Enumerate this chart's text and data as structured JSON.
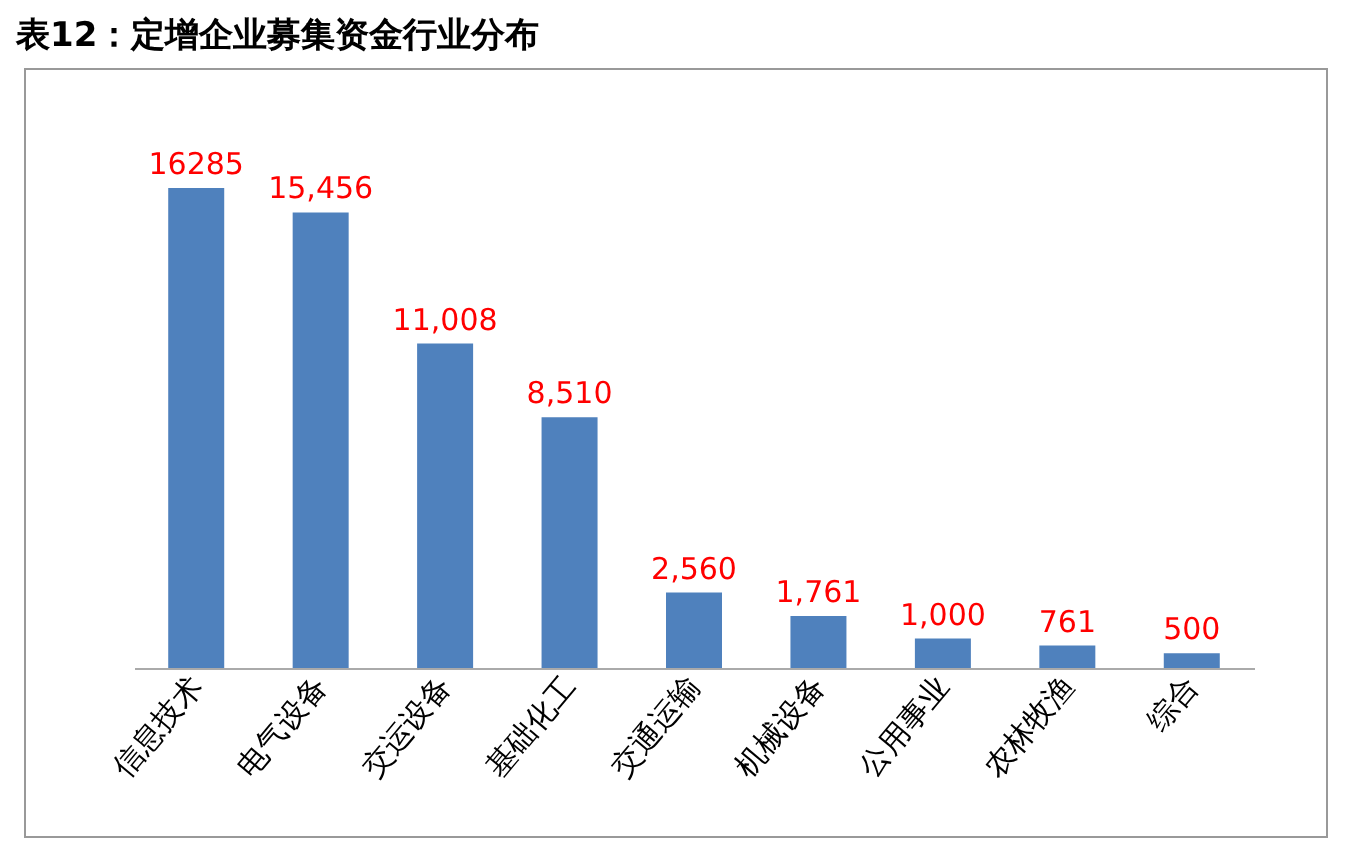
{
  "chart_data": {
    "type": "bar",
    "title": "表12：定增企业募集资金行业分布",
    "categories": [
      "信息技术",
      "电气设备",
      "交运设备",
      "基础化工",
      "交通运输",
      "机械设备",
      "公用事业",
      "农林牧渔",
      "综合"
    ],
    "values": [
      16285,
      15456,
      11008,
      8510,
      2560,
      1761,
      1000,
      761,
      500
    ],
    "value_labels": [
      "16285",
      "15,456",
      "11,008",
      "8,510",
      "2,560",
      "1,761",
      "1,000",
      "761",
      "500"
    ],
    "color": "#4f81bd"
  }
}
